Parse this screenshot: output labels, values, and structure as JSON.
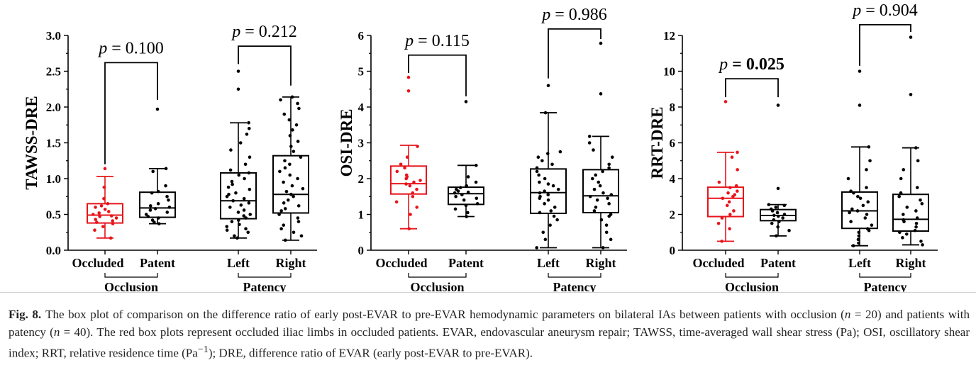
{
  "figure": {
    "caption_label": "Fig. 8.",
    "caption_parts": [
      "The box plot of comparison on the difference ratio of early post-EVAR to pre-EVAR hemodynamic parameters on bilateral IAs between patients with occlusion (",
      "n",
      " = 20) and patients with patency (",
      "n",
      " = 40). The red box plots represent occluded iliac limbs in occluded patients. EVAR, endovascular aneurysm repair; TAWSS, time-averaged wall shear stress (Pa); OSI, oscillatory shear index; RRT, relative residence time (Pa",
      "−1",
      "); DRE, difference ratio of EVAR (early post-EVAR to pre-EVAR)."
    ]
  },
  "colors": {
    "occluded": "#e8141b",
    "default": "#000000"
  },
  "chart_data": [
    {
      "type": "box",
      "ylabel": "TAWSS-DRE",
      "ylim": [
        0,
        3.0
      ],
      "yticks": [
        "0.0",
        "0.5",
        "1.0",
        "1.5",
        "2.0",
        "2.5",
        "3.0"
      ],
      "categories": [
        "Occluded",
        "Patent",
        "Left",
        "Right"
      ],
      "groups": [
        {
          "label": "Occlusion",
          "members": [
            0,
            1
          ]
        },
        {
          "label": "Patency",
          "members": [
            2,
            3
          ]
        }
      ],
      "boxes": [
        {
          "name": "Occluded",
          "color": "#e8141b",
          "min": 0.17,
          "q1": 0.38,
          "median": 0.49,
          "q3": 0.65,
          "max": 1.03,
          "outliers": [
            1.14
          ],
          "points": [
            0.17,
            0.28,
            0.33,
            0.37,
            0.39,
            0.41,
            0.43,
            0.45,
            0.47,
            0.48,
            0.5,
            0.52,
            0.54,
            0.57,
            0.6,
            0.62,
            0.65,
            0.72,
            0.88,
            1.14
          ]
        },
        {
          "name": "Patent",
          "color": "#000000",
          "min": 0.37,
          "q1": 0.46,
          "median": 0.59,
          "q3": 0.81,
          "max": 1.14,
          "outliers": [
            1.97
          ],
          "points": [
            0.37,
            0.39,
            0.42,
            0.45,
            0.47,
            0.5,
            0.53,
            0.56,
            0.58,
            0.6,
            0.62,
            0.65,
            0.7,
            0.75,
            0.8,
            0.82,
            0.9,
            1.1,
            1.14,
            1.97
          ]
        },
        {
          "name": "Left",
          "color": "#000000",
          "min": 0.17,
          "q1": 0.44,
          "median": 0.69,
          "q3": 1.08,
          "max": 1.78,
          "outliers": [
            2.25,
            2.5
          ],
          "points": [
            0.17,
            0.2,
            0.25,
            0.28,
            0.3,
            0.33,
            0.36,
            0.4,
            0.42,
            0.45,
            0.48,
            0.5,
            0.53,
            0.56,
            0.6,
            0.63,
            0.66,
            0.69,
            0.72,
            0.75,
            0.78,
            0.8,
            0.85,
            0.88,
            0.92,
            0.96,
            1.0,
            1.05,
            1.08,
            1.12,
            1.2,
            1.3,
            1.4,
            1.5,
            1.62,
            1.7,
            1.78,
            2.25,
            2.5
          ]
        },
        {
          "name": "Right",
          "color": "#000000",
          "min": 0.14,
          "q1": 0.52,
          "median": 0.78,
          "q3": 1.32,
          "max": 2.14,
          "outliers": [],
          "points": [
            0.14,
            0.2,
            0.25,
            0.3,
            0.35,
            0.4,
            0.45,
            0.5,
            0.55,
            0.58,
            0.62,
            0.66,
            0.7,
            0.75,
            0.78,
            0.82,
            0.86,
            0.9,
            0.95,
            1.0,
            1.05,
            1.1,
            1.15,
            1.2,
            1.25,
            1.3,
            1.38,
            1.45,
            1.52,
            1.6,
            1.68,
            1.75,
            1.82,
            1.9,
            1.98,
            2.05,
            2.1,
            2.14
          ]
        }
      ],
      "annotations": [
        {
          "between": [
            0,
            1
          ],
          "label_prefix": "p",
          "label_value": "= 0.100",
          "bold": false,
          "y": 2.62,
          "left_tip": 1.2,
          "right_tip": 2.1
        },
        {
          "between": [
            2,
            3
          ],
          "label_prefix": "p",
          "label_value": "= 0.212",
          "bold": false,
          "y": 2.85,
          "left_tip": 2.6,
          "right_tip": 2.3
        }
      ]
    },
    {
      "type": "box",
      "ylabel": "OSI-DRE",
      "ylim": [
        0,
        6
      ],
      "yticks": [
        "0",
        "1",
        "2",
        "3",
        "4",
        "5",
        "6"
      ],
      "categories": [
        "Occluded",
        "Patent",
        "Left",
        "Right"
      ],
      "groups": [
        {
          "label": "Occlusion",
          "members": [
            0,
            1
          ]
        },
        {
          "label": "Patency",
          "members": [
            2,
            3
          ]
        }
      ],
      "boxes": [
        {
          "name": "Occluded",
          "color": "#e8141b",
          "min": 0.6,
          "q1": 1.57,
          "median": 1.86,
          "q3": 2.35,
          "max": 2.93,
          "outliers": [
            4.45,
            4.83
          ],
          "points": [
            0.6,
            1.0,
            1.2,
            1.35,
            1.5,
            1.6,
            1.7,
            1.8,
            1.85,
            1.9,
            1.95,
            2.0,
            2.05,
            2.1,
            2.2,
            2.3,
            2.4,
            2.6,
            2.9,
            4.45,
            4.83
          ]
        },
        {
          "name": "Patent",
          "color": "#000000",
          "min": 0.94,
          "q1": 1.28,
          "median": 1.58,
          "q3": 1.76,
          "max": 2.37,
          "outliers": [
            4.15
          ],
          "points": [
            0.94,
            1.05,
            1.15,
            1.25,
            1.3,
            1.4,
            1.45,
            1.5,
            1.55,
            1.6,
            1.62,
            1.65,
            1.7,
            1.75,
            1.8,
            1.9,
            2.05,
            2.37,
            4.15
          ]
        },
        {
          "name": "Left",
          "color": "#000000",
          "min": 0.07,
          "q1": 1.03,
          "median": 1.61,
          "q3": 2.27,
          "max": 3.84,
          "outliers": [
            4.6
          ],
          "points": [
            0.07,
            0.3,
            0.5,
            0.7,
            0.85,
            0.95,
            1.05,
            1.1,
            1.2,
            1.3,
            1.4,
            1.45,
            1.5,
            1.55,
            1.6,
            1.65,
            1.7,
            1.8,
            1.85,
            1.9,
            2.0,
            2.1,
            2.2,
            2.3,
            2.4,
            2.5,
            2.6,
            2.7,
            2.75,
            3.84,
            4.6
          ]
        },
        {
          "name": "Right",
          "color": "#000000",
          "min": 0.07,
          "q1": 1.05,
          "median": 1.52,
          "q3": 2.25,
          "max": 3.18,
          "outliers": [
            4.37,
            5.78
          ],
          "points": [
            0.07,
            0.3,
            0.5,
            0.7,
            0.85,
            0.95,
            1.0,
            1.1,
            1.2,
            1.3,
            1.4,
            1.45,
            1.5,
            1.55,
            1.6,
            1.7,
            1.8,
            1.9,
            2.0,
            2.1,
            2.2,
            2.3,
            2.4,
            2.6,
            2.8,
            3.0,
            3.18,
            4.37,
            5.78
          ]
        }
      ],
      "annotations": [
        {
          "between": [
            0,
            1
          ],
          "label_prefix": "p",
          "label_value": "= 0.115",
          "bold": false,
          "y": 5.45,
          "left_tip": 4.95,
          "right_tip": 4.3
        },
        {
          "between": [
            2,
            3
          ],
          "label_prefix": "p",
          "label_value": "= 0.986",
          "bold": false,
          "y": 6.18,
          "left_tip": 4.8,
          "right_tip": 5.9
        }
      ]
    },
    {
      "type": "box",
      "ylabel": "RRT-DRE",
      "ylim": [
        0,
        12
      ],
      "yticks": [
        "0",
        "2",
        "4",
        "6",
        "8",
        "10",
        "12"
      ],
      "categories": [
        "Occluded",
        "Patent",
        "Left",
        "Right"
      ],
      "groups": [
        {
          "label": "Occlusion",
          "members": [
            0,
            1
          ]
        },
        {
          "label": "Patency",
          "members": [
            2,
            3
          ]
        }
      ],
      "boxes": [
        {
          "name": "Occluded",
          "color": "#e8141b",
          "min": 0.5,
          "q1": 1.88,
          "median": 2.9,
          "q3": 3.52,
          "max": 5.47,
          "outliers": [
            8.3
          ],
          "points": [
            0.5,
            1.2,
            1.5,
            1.8,
            2.0,
            2.2,
            2.5,
            2.7,
            2.9,
            3.0,
            3.1,
            3.2,
            3.3,
            3.5,
            3.6,
            3.8,
            4.5,
            5.2,
            5.47,
            8.3
          ]
        },
        {
          "name": "Patent",
          "color": "#000000",
          "min": 0.8,
          "q1": 1.65,
          "median": 1.94,
          "q3": 2.27,
          "max": 2.55,
          "outliers": [
            3.45,
            8.1
          ],
          "points": [
            0.8,
            1.1,
            1.3,
            1.5,
            1.6,
            1.7,
            1.8,
            1.9,
            1.95,
            2.0,
            2.1,
            2.2,
            2.3,
            2.4,
            2.5,
            2.55,
            3.45,
            8.1
          ]
        },
        {
          "name": "Left",
          "color": "#000000",
          "min": 0.25,
          "q1": 1.22,
          "median": 2.2,
          "q3": 3.25,
          "max": 5.77,
          "outliers": [
            8.1,
            10.0
          ],
          "points": [
            0.25,
            0.4,
            0.6,
            0.8,
            1.0,
            1.1,
            1.2,
            1.4,
            1.6,
            1.8,
            2.0,
            2.1,
            2.2,
            2.3,
            2.5,
            2.7,
            2.9,
            3.0,
            3.2,
            3.3,
            3.5,
            4.0,
            4.5,
            5.0,
            5.77,
            8.1,
            10.0
          ]
        },
        {
          "name": "Right",
          "color": "#000000",
          "min": 0.3,
          "q1": 1.07,
          "median": 1.73,
          "q3": 3.12,
          "max": 5.72,
          "outliers": [
            8.7,
            11.9
          ],
          "points": [
            0.3,
            0.5,
            0.7,
            0.9,
            1.0,
            1.1,
            1.3,
            1.5,
            1.6,
            1.7,
            1.8,
            2.0,
            2.2,
            2.4,
            2.6,
            2.8,
            3.0,
            3.2,
            3.5,
            4.0,
            4.5,
            5.0,
            5.72,
            8.7,
            11.9
          ]
        }
      ],
      "annotations": [
        {
          "between": [
            0,
            1
          ],
          "label_prefix": "p",
          "label_value": "= 0.025",
          "bold": true,
          "y": 9.58,
          "left_tip": 8.55,
          "right_tip": 8.55
        },
        {
          "between": [
            2,
            3
          ],
          "label_prefix": "p",
          "label_value": "= 0.904",
          "bold": false,
          "y": 12.6,
          "left_tip": 10.3,
          "right_tip": 12.2
        }
      ]
    }
  ]
}
